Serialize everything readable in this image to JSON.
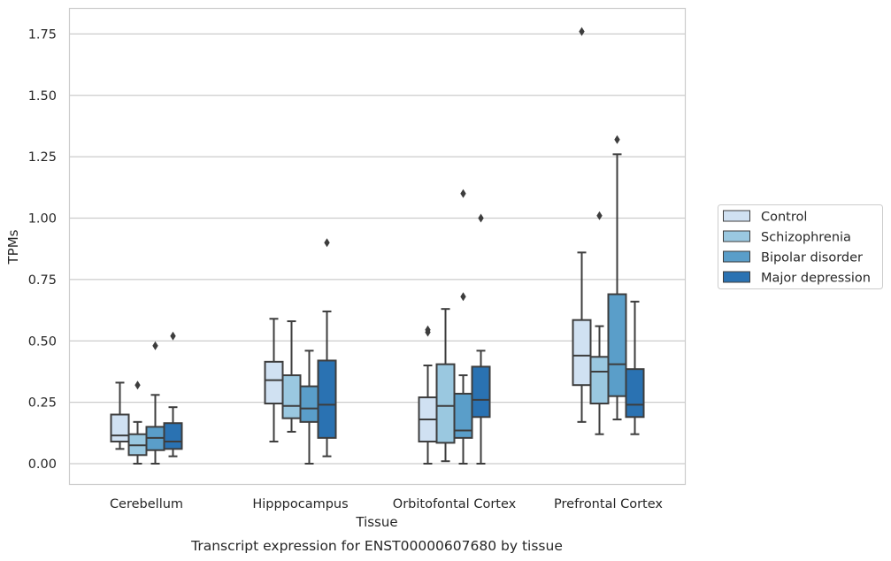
{
  "chart_data": {
    "type": "box",
    "xlabel": "Tissue",
    "ylabel": "TPMs",
    "caption": "Transcript expression for ENST00000607680 by tissue",
    "ylim": [
      -0.085,
      1.85
    ],
    "yticks": [
      "0.00",
      "0.25",
      "0.50",
      "0.75",
      "1.00",
      "1.25",
      "1.50",
      "1.75"
    ],
    "grid": "horizontal",
    "legend_position": "right",
    "categories": [
      "Cerebellum",
      "Hipppocampus",
      "Orbitofontal Cortex",
      "Prefrontal Cortex"
    ],
    "series": [
      {
        "name": "Control",
        "color": "#d0e1f2",
        "boxes": [
          {
            "whislo": 0.06,
            "q1": 0.09,
            "med": 0.115,
            "q3": 0.2,
            "whishi": 0.33,
            "fliers": []
          },
          {
            "whislo": 0.09,
            "q1": 0.245,
            "med": 0.34,
            "q3": 0.415,
            "whishi": 0.59,
            "fliers": []
          },
          {
            "whislo": 0.0,
            "q1": 0.09,
            "med": 0.18,
            "q3": 0.27,
            "whishi": 0.4,
            "fliers": [
              0.535,
              0.545
            ]
          },
          {
            "whislo": 0.17,
            "q1": 0.32,
            "med": 0.44,
            "q3": 0.585,
            "whishi": 0.86,
            "fliers": [
              1.76
            ]
          }
        ]
      },
      {
        "name": "Schizophrenia",
        "color": "#9ac8e0",
        "boxes": [
          {
            "whislo": 0.0,
            "q1": 0.035,
            "med": 0.075,
            "q3": 0.12,
            "whishi": 0.17,
            "fliers": [
              0.32
            ]
          },
          {
            "whislo": 0.13,
            "q1": 0.185,
            "med": 0.235,
            "q3": 0.36,
            "whishi": 0.58,
            "fliers": []
          },
          {
            "whislo": 0.01,
            "q1": 0.085,
            "med": 0.235,
            "q3": 0.405,
            "whishi": 0.63,
            "fliers": []
          },
          {
            "whislo": 0.12,
            "q1": 0.245,
            "med": 0.375,
            "q3": 0.435,
            "whishi": 0.56,
            "fliers": [
              1.01
            ]
          }
        ]
      },
      {
        "name": "Bipolar disorder",
        "color": "#5a9ec9",
        "boxes": [
          {
            "whislo": 0.0,
            "q1": 0.055,
            "med": 0.105,
            "q3": 0.15,
            "whishi": 0.28,
            "fliers": [
              0.48
            ]
          },
          {
            "whislo": 0.0,
            "q1": 0.17,
            "med": 0.225,
            "q3": 0.315,
            "whishi": 0.46,
            "fliers": []
          },
          {
            "whislo": 0.0,
            "q1": 0.105,
            "med": 0.135,
            "q3": 0.285,
            "whishi": 0.36,
            "fliers": [
              0.68,
              1.1
            ]
          },
          {
            "whislo": 0.18,
            "q1": 0.275,
            "med": 0.405,
            "q3": 0.69,
            "whishi": 1.26,
            "fliers": [
              1.32
            ]
          }
        ]
      },
      {
        "name": "Major depression",
        "color": "#2a72b2",
        "boxes": [
          {
            "whislo": 0.03,
            "q1": 0.06,
            "med": 0.09,
            "q3": 0.165,
            "whishi": 0.23,
            "fliers": [
              0.52
            ]
          },
          {
            "whislo": 0.03,
            "q1": 0.105,
            "med": 0.24,
            "q3": 0.42,
            "whishi": 0.62,
            "fliers": [
              0.9
            ]
          },
          {
            "whislo": 0.0,
            "q1": 0.19,
            "med": 0.26,
            "q3": 0.395,
            "whishi": 0.46,
            "fliers": [
              1.0
            ]
          },
          {
            "whislo": 0.12,
            "q1": 0.19,
            "med": 0.24,
            "q3": 0.385,
            "whishi": 0.66,
            "fliers": []
          }
        ]
      }
    ]
  }
}
